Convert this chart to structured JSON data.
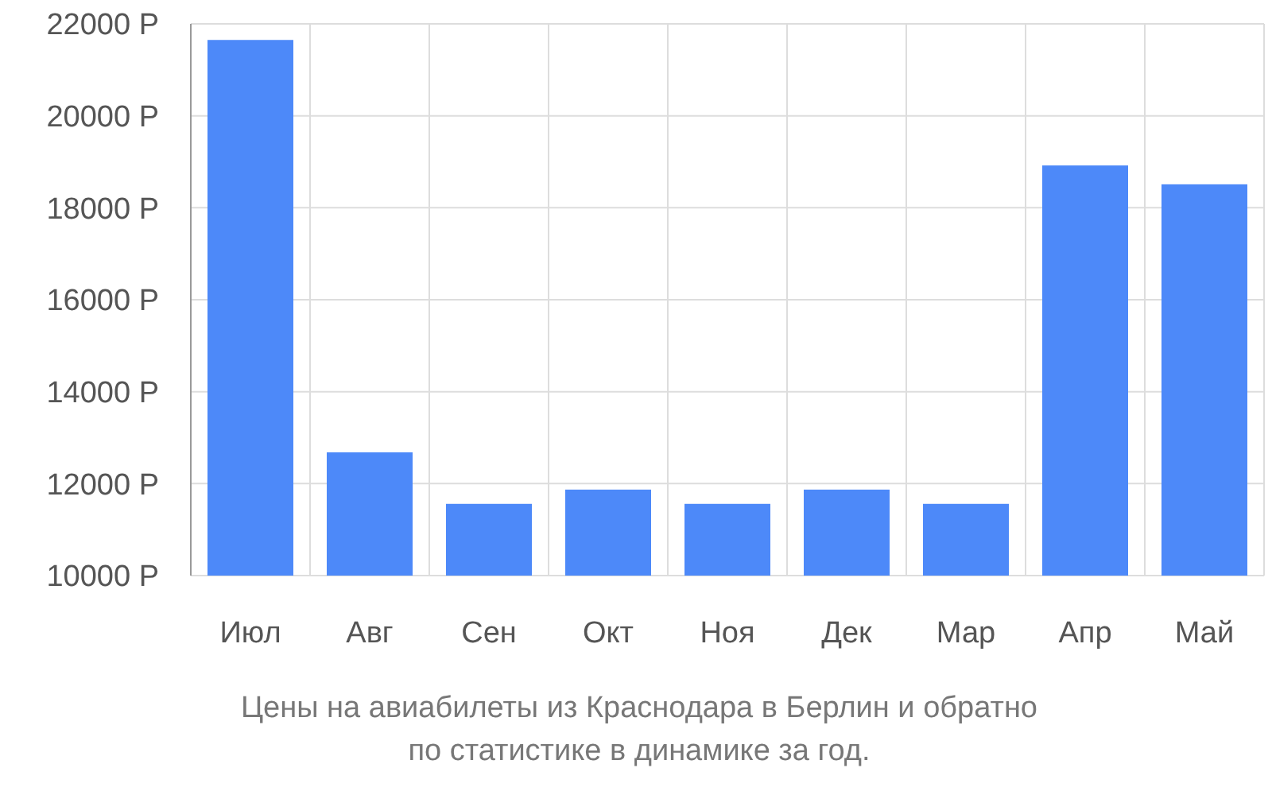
{
  "chart_data": {
    "type": "bar",
    "categories": [
      "Июл",
      "Авг",
      "Сен",
      "Окт",
      "Ноя",
      "Дек",
      "Мар",
      "Апр",
      "Май"
    ],
    "values": [
      21650,
      12680,
      11560,
      11870,
      11560,
      11870,
      11560,
      18920,
      18510
    ],
    "color": "#4d89f9",
    "ylim": [
      10000,
      22000
    ],
    "yticks": [
      {
        "value": 10000,
        "label": "10000 Р"
      },
      {
        "value": 12000,
        "label": "12000 Р"
      },
      {
        "value": 14000,
        "label": "14000 Р"
      },
      {
        "value": 16000,
        "label": "16000 Р"
      },
      {
        "value": 18000,
        "label": "18000 Р"
      },
      {
        "value": 20000,
        "label": "20000 Р"
      },
      {
        "value": 22000,
        "label": "22000 Р"
      }
    ],
    "grid": true,
    "annotations": [
      "Цены на авиабилеты из Краснодара в Берлин и обратно",
      "по статистике в динамике за год."
    ]
  }
}
